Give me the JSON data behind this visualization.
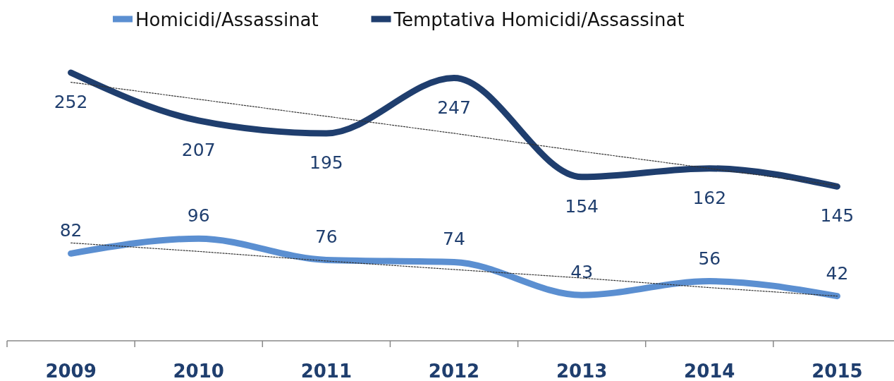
{
  "chart_data": {
    "type": "line",
    "categories": [
      "2009",
      "2010",
      "2011",
      "2012",
      "2013",
      "2014",
      "2015"
    ],
    "tick_labels": "x",
    "legend": "top",
    "marker": "none",
    "series": [
      {
        "name": "Homicidi/Assassinat",
        "color": "#5b8fd1",
        "values": [
          82,
          96,
          76,
          74,
          43,
          56,
          42
        ],
        "value_labels": [
          "82",
          "96",
          "76",
          "74",
          "43",
          "56",
          "42"
        ]
      },
      {
        "name": "Temptativa Homicidi/Assassinat",
        "color": "#1f3e6e",
        "values": [
          252,
          207,
          195,
          247,
          154,
          162,
          145
        ],
        "value_labels": [
          "252",
          "207",
          "195",
          "247",
          "154",
          "162",
          "145"
        ]
      },
      {
        "type": "line",
        "color": "#333333",
        "line_style": "dotted",
        "values": [
          92,
          84,
          75,
          67,
          59,
          50,
          42
        ]
      },
      {
        "type": "line",
        "color": "#333333",
        "line_style": "dotted",
        "values": [
          243,
          227,
          211,
          195,
          178,
          162,
          146
        ]
      }
    ]
  }
}
